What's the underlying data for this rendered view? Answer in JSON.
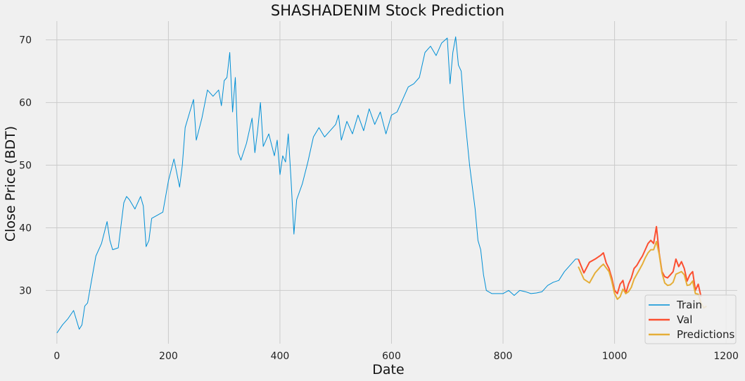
{
  "chart_data": {
    "type": "line",
    "title": "SHASHADENIM Stock Prediction",
    "xlabel": "Date",
    "ylabel": "Close Price (BDT)",
    "xlim": [
      -20,
      1220
    ],
    "ylim": [
      21.5,
      73
    ],
    "xticks": [
      0,
      200,
      400,
      600,
      800,
      1000,
      1200
    ],
    "yticks": [
      30,
      40,
      50,
      60,
      70
    ],
    "grid": true,
    "legend_position": "lower-right",
    "colors": {
      "train": "#008fd5",
      "val": "#fc4f30",
      "predictions": "#e5ae38",
      "grid": "#cbcbcb",
      "background": "#f0f0f0"
    },
    "series": [
      {
        "name": "Train",
        "key": "train",
        "x": [
          0,
          10,
          20,
          30,
          40,
          45,
          50,
          55,
          60,
          70,
          80,
          90,
          95,
          100,
          110,
          120,
          125,
          130,
          140,
          150,
          155,
          160,
          165,
          170,
          180,
          190,
          200,
          210,
          220,
          225,
          230,
          240,
          245,
          250,
          260,
          270,
          280,
          290,
          295,
          300,
          305,
          310,
          315,
          320,
          325,
          330,
          340,
          350,
          355,
          360,
          365,
          370,
          380,
          390,
          395,
          400,
          405,
          410,
          415,
          420,
          425,
          430,
          440,
          450,
          460,
          470,
          480,
          490,
          500,
          505,
          510,
          520,
          530,
          540,
          550,
          560,
          570,
          580,
          590,
          600,
          610,
          620,
          630,
          640,
          650,
          660,
          670,
          680,
          690,
          700,
          705,
          710,
          715,
          720,
          725,
          730,
          740,
          750,
          755,
          760,
          765,
          770,
          780,
          790,
          800,
          810,
          820,
          830,
          840,
          850,
          860,
          870,
          880,
          890,
          900,
          910,
          920,
          930,
          935
        ],
        "y": [
          23.2,
          24.5,
          25.5,
          26.8,
          23.8,
          24.5,
          27.5,
          28,
          30.5,
          35.5,
          37.5,
          41,
          38,
          36.5,
          36.8,
          44,
          45,
          44.5,
          43,
          45,
          43.5,
          37,
          38,
          41.5,
          42,
          42.5,
          47.5,
          51,
          46.5,
          50,
          56,
          59,
          60.5,
          54,
          57.5,
          62,
          61,
          62,
          59.5,
          63.5,
          64,
          68,
          58.5,
          64,
          52,
          50.8,
          53.5,
          57.5,
          52,
          55.5,
          60,
          53,
          55,
          51.5,
          54,
          48.5,
          51.5,
          50.5,
          55,
          47.5,
          39,
          44.5,
          47,
          50.5,
          54.5,
          56,
          54.5,
          55.5,
          56.5,
          58,
          54,
          57,
          55,
          58,
          55.5,
          59,
          56.5,
          58.5,
          55,
          58,
          58.5,
          60.5,
          62.5,
          63,
          64,
          68,
          69,
          67.5,
          69.5,
          70.3,
          63,
          68,
          70.5,
          66,
          65,
          59,
          50,
          43,
          38,
          36.5,
          32.5,
          30,
          29.5,
          29.5,
          29.5,
          30,
          29.2,
          30,
          29.8,
          29.5,
          29.6,
          29.8,
          30.8,
          31.3,
          31.6,
          33,
          34,
          35,
          35
        ]
      },
      {
        "name": "Val",
        "key": "val",
        "x": [
          935,
          945,
          955,
          965,
          975,
          980,
          985,
          990,
          995,
          1000,
          1005,
          1010,
          1015,
          1020,
          1025,
          1030,
          1035,
          1040,
          1045,
          1050,
          1055,
          1060,
          1065,
          1070,
          1075,
          1080,
          1085,
          1090,
          1095,
          1100,
          1105,
          1110,
          1115,
          1120,
          1125,
          1130,
          1135,
          1140,
          1145,
          1150,
          1155
        ],
        "y": [
          35,
          32.8,
          34.5,
          35,
          35.6,
          36,
          34.4,
          33.5,
          32,
          30,
          29.5,
          31,
          31.6,
          29.5,
          31,
          32,
          33.5,
          34,
          34.8,
          35.5,
          36.5,
          37.5,
          38,
          37.5,
          40.2,
          36,
          33,
          32.2,
          32,
          32.5,
          33,
          35,
          33.8,
          34.6,
          33.5,
          31.5,
          32.5,
          33,
          30,
          31,
          29
        ]
      },
      {
        "name": "Predictions",
        "key": "predictions",
        "x": [
          935,
          945,
          955,
          965,
          975,
          980,
          985,
          990,
          995,
          1000,
          1005,
          1010,
          1015,
          1020,
          1025,
          1030,
          1035,
          1040,
          1045,
          1050,
          1055,
          1060,
          1065,
          1070,
          1075,
          1080,
          1085,
          1090,
          1095,
          1100,
          1105,
          1110,
          1115,
          1120,
          1125,
          1130,
          1135,
          1140,
          1145,
          1150,
          1155,
          1160,
          1165
        ],
        "y": [
          33.8,
          31.8,
          31.2,
          32.8,
          33.8,
          34.2,
          33.6,
          33,
          31.5,
          29.5,
          28.6,
          29,
          30.2,
          29.5,
          29.8,
          30.5,
          31.8,
          32.6,
          33.4,
          34.2,
          35.2,
          36,
          36.5,
          36.5,
          37.8,
          35.8,
          32.8,
          31.2,
          30.8,
          30.9,
          31.3,
          32.6,
          32.8,
          33,
          32.5,
          30.8,
          30.9,
          31.5,
          29.5,
          29.4,
          28,
          27.2,
          27.5
        ]
      }
    ]
  }
}
